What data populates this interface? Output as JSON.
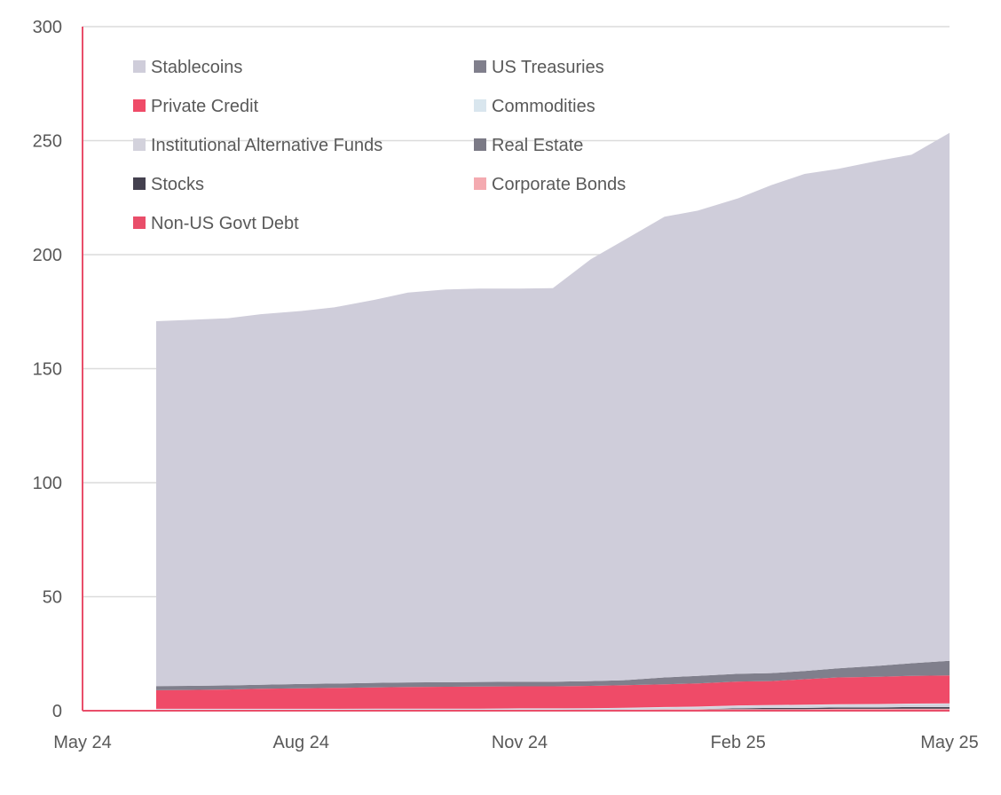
{
  "chart_data": {
    "type": "area",
    "stacked": true,
    "title": "",
    "xlabel": "",
    "ylabel": "",
    "ylim": [
      0,
      300
    ],
    "xlim": [
      "2024-05-01",
      "2025-05-01"
    ],
    "y_ticks": [
      "0",
      "50",
      "100",
      "150",
      "200",
      "250",
      "300"
    ],
    "x_ticks": [
      {
        "date": "2024-05-01",
        "label": "May 24"
      },
      {
        "date": "2024-08-01",
        "label": "Aug 24"
      },
      {
        "date": "2024-11-01",
        "label": "Nov 24"
      },
      {
        "date": "2025-02-01",
        "label": "Feb 25"
      },
      {
        "date": "2025-05-01",
        "label": "May 25"
      }
    ],
    "grid": true,
    "legend_position": "top-left",
    "x": [
      "2024-06-01",
      "2024-06-15",
      "2024-07-01",
      "2024-07-15",
      "2024-08-01",
      "2024-08-15",
      "2024-09-01",
      "2024-09-15",
      "2024-10-01",
      "2024-10-15",
      "2024-11-01",
      "2024-11-15",
      "2024-12-01",
      "2024-12-15",
      "2025-01-01",
      "2025-01-15",
      "2025-02-01",
      "2025-02-15",
      "2025-03-01",
      "2025-03-15",
      "2025-04-01",
      "2025-04-15",
      "2025-05-01"
    ],
    "series": [
      {
        "name": "Non-US Govt Debt",
        "color": "#e94e6a",
        "values": [
          0.2,
          0.2,
          0.2,
          0.2,
          0.2,
          0.2,
          0.3,
          0.3,
          0.3,
          0.3,
          0.3,
          0.3,
          0.3,
          0.4,
          0.4,
          0.4,
          0.4,
          0.4,
          0.4,
          0.5,
          0.5,
          0.5,
          0.5
        ]
      },
      {
        "name": "Corporate Bonds",
        "color": "#f4aab0",
        "values": [
          0,
          0,
          0,
          0,
          0,
          0,
          0,
          0,
          0,
          0,
          0,
          0,
          0,
          0,
          0.2,
          0.3,
          0.3,
          0.3,
          0.3,
          0.3,
          0.3,
          0.4,
          0.4
        ]
      },
      {
        "name": "Stocks",
        "color": "#44414f",
        "values": [
          0,
          0,
          0,
          0,
          0,
          0,
          0,
          0,
          0,
          0,
          0,
          0,
          0,
          0,
          0,
          0,
          0.3,
          0.5,
          0.5,
          0.6,
          0.6,
          0.7,
          0.7
        ]
      },
      {
        "name": "Real Estate",
        "color": "#7b7a86",
        "values": [
          0,
          0,
          0,
          0,
          0,
          0,
          0,
          0,
          0,
          0,
          0,
          0,
          0,
          0,
          0,
          0,
          0,
          0,
          0,
          0,
          0,
          0,
          0
        ]
      },
      {
        "name": "Institutional Alternative Funds",
        "color": "#d3d2dc",
        "values": [
          0.3,
          0.3,
          0.3,
          0.3,
          0.3,
          0.3,
          0.3,
          0.3,
          0.3,
          0.3,
          0.4,
          0.4,
          0.5,
          0.6,
          0.7,
          0.8,
          1.0,
          1.0,
          1.1,
          1.1,
          1.2,
          1.2,
          1.3
        ]
      },
      {
        "name": "Commodities",
        "color": "#d9e6ee",
        "values": [
          0.3,
          0.3,
          0.3,
          0.3,
          0.3,
          0.3,
          0.3,
          0.3,
          0.3,
          0.3,
          0.3,
          0.3,
          0.3,
          0.3,
          0.3,
          0.3,
          0.3,
          0.3,
          0.3,
          0.3,
          0.3,
          0.3,
          0.3
        ]
      },
      {
        "name": "Private Credit",
        "color": "#ef4b68",
        "values": [
          8.2,
          8.3,
          8.5,
          8.8,
          9.0,
          9.2,
          9.3,
          9.5,
          9.6,
          9.7,
          9.7,
          9.7,
          9.8,
          9.9,
          10.0,
          10.2,
          10.5,
          10.5,
          11.2,
          11.8,
          12.0,
          12.2,
          12.3
        ]
      },
      {
        "name": "US Treasuries",
        "color": "#807f8c",
        "values": [
          1.8,
          1.8,
          1.8,
          1.8,
          1.9,
          1.9,
          2.0,
          2.0,
          2.0,
          2.0,
          2.0,
          2.0,
          2.1,
          2.2,
          3.0,
          3.3,
          3.4,
          3.5,
          3.6,
          4.0,
          4.8,
          5.5,
          6.4
        ]
      },
      {
        "name": "Stablecoins",
        "color": "#cfcdda",
        "values": [
          160.0,
          160.5,
          161.0,
          162.5,
          163.6,
          165.0,
          168.0,
          171.0,
          172.2,
          172.5,
          172.4,
          172.6,
          185.0,
          193.0,
          202.0,
          204.0,
          208.5,
          214.0,
          218.0,
          219.0,
          221.5,
          223.0,
          231.5
        ]
      }
    ]
  },
  "legend": {
    "left_column": [
      "Stablecoins",
      "Private Credit",
      "Institutional Alternative Funds",
      "Stocks",
      "Non-US Govt Debt"
    ],
    "right_column": [
      "US Treasuries",
      "Commodities",
      "Real Estate",
      "Corporate Bonds"
    ],
    "colors": {
      "Stablecoins": "#cfcdda",
      "Private Credit": "#ef4b68",
      "Institutional Alternative Funds": "#d3d2dc",
      "Stocks": "#44414f",
      "Non-US Govt Debt": "#e94e6a",
      "US Treasuries": "#807f8c",
      "Commodities": "#d9e6ee",
      "Real Estate": "#7b7a86",
      "Corporate Bonds": "#f4aab0"
    }
  },
  "axis_colors": {
    "y_axis": "#e94e6a",
    "x_axis": "#e94e6a",
    "grid": "#dcdcdc"
  }
}
